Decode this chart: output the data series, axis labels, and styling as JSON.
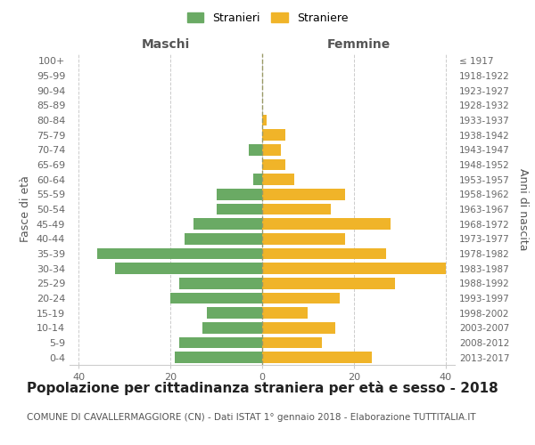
{
  "age_groups": [
    "0-4",
    "5-9",
    "10-14",
    "15-19",
    "20-24",
    "25-29",
    "30-34",
    "35-39",
    "40-44",
    "45-49",
    "50-54",
    "55-59",
    "60-64",
    "65-69",
    "70-74",
    "75-79",
    "80-84",
    "85-89",
    "90-94",
    "95-99",
    "100+"
  ],
  "birth_years": [
    "2013-2017",
    "2008-2012",
    "2003-2007",
    "1998-2002",
    "1993-1997",
    "1988-1992",
    "1983-1987",
    "1978-1982",
    "1973-1977",
    "1968-1972",
    "1963-1967",
    "1958-1962",
    "1953-1957",
    "1948-1952",
    "1943-1947",
    "1938-1942",
    "1933-1937",
    "1928-1932",
    "1923-1927",
    "1918-1922",
    "≤ 1917"
  ],
  "males": [
    19,
    18,
    13,
    12,
    20,
    18,
    32,
    36,
    17,
    15,
    10,
    10,
    2,
    0,
    3,
    0,
    0,
    0,
    0,
    0,
    0
  ],
  "females": [
    24,
    13,
    16,
    10,
    17,
    29,
    40,
    27,
    18,
    28,
    15,
    18,
    7,
    5,
    4,
    5,
    1,
    0,
    0,
    0,
    0
  ],
  "male_color": "#6aaa64",
  "female_color": "#f0b429",
  "bar_height": 0.75,
  "xlim": 42,
  "title": "Popolazione per cittadinanza straniera per età e sesso - 2018",
  "subtitle": "COMUNE DI CAVALLERMAGGIORE (CN) - Dati ISTAT 1° gennaio 2018 - Elaborazione TUTTITALIA.IT",
  "xlabel_left": "Maschi",
  "xlabel_right": "Femmine",
  "ylabel_left": "Fasce di età",
  "ylabel_right": "Anni di nascita",
  "legend_male": "Stranieri",
  "legend_female": "Straniere",
  "background_color": "#ffffff",
  "grid_color": "#cccccc",
  "title_fontsize": 11,
  "subtitle_fontsize": 7.5,
  "label_fontsize": 9,
  "tick_fontsize": 8,
  "center_line_color": "#999966"
}
